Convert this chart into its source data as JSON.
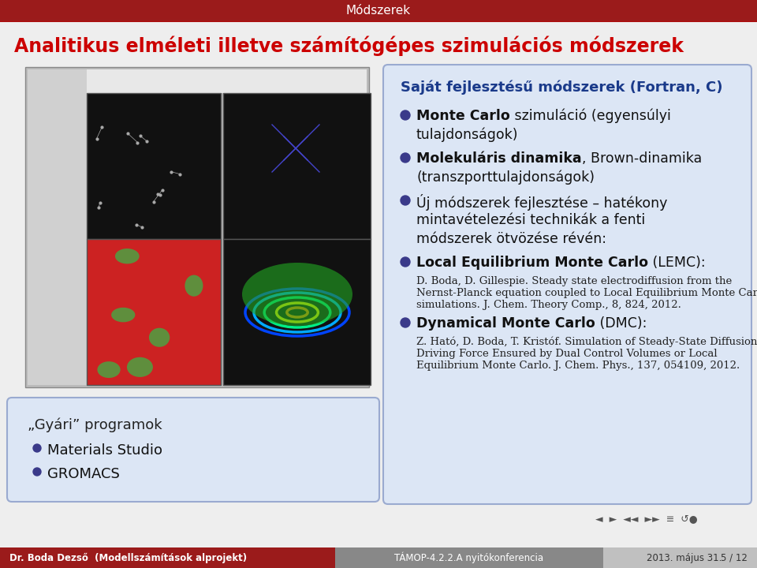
{
  "title_bar_text": "Módszerek",
  "title_bar_color": "#9b1b1b",
  "title_bar_text_color": "#ffffff",
  "bg_color": "#eeeeee",
  "main_title": "Analitikus elméleti illetve számítógépes szimulációs módszerek",
  "main_title_color": "#cc0000",
  "main_title_fontsize": 17,
  "right_box_color": "#dce6f5",
  "right_box_border_color": "#9aaad0",
  "right_box_title": "Saját fejlesztésű módszerek (Fortran, C)",
  "right_box_title_color": "#1a3a8a",
  "left_box_color": "#dce6f5",
  "left_box_border_color": "#9aaad0",
  "bullet_color": "#3a3a8a",
  "footer_left": "Dr. Boda Dezső  (Modellszámítások alprojekt)",
  "footer_center": "TÁMOP-4.2.2.A nyitókonferencia",
  "footer_right_date": "2013. május 31.",
  "footer_right_page": "5 / 12",
  "footer_bg": "#9b1b1b",
  "footer_text_color": "#ffffff",
  "footer_mid_bg": "#888888",
  "footer_right_bg": "#c0c0c0",
  "footer_right_text_color": "#333333",
  "nav_text": "◄  ►  ◄◄  ►►  ≡  ↺●"
}
